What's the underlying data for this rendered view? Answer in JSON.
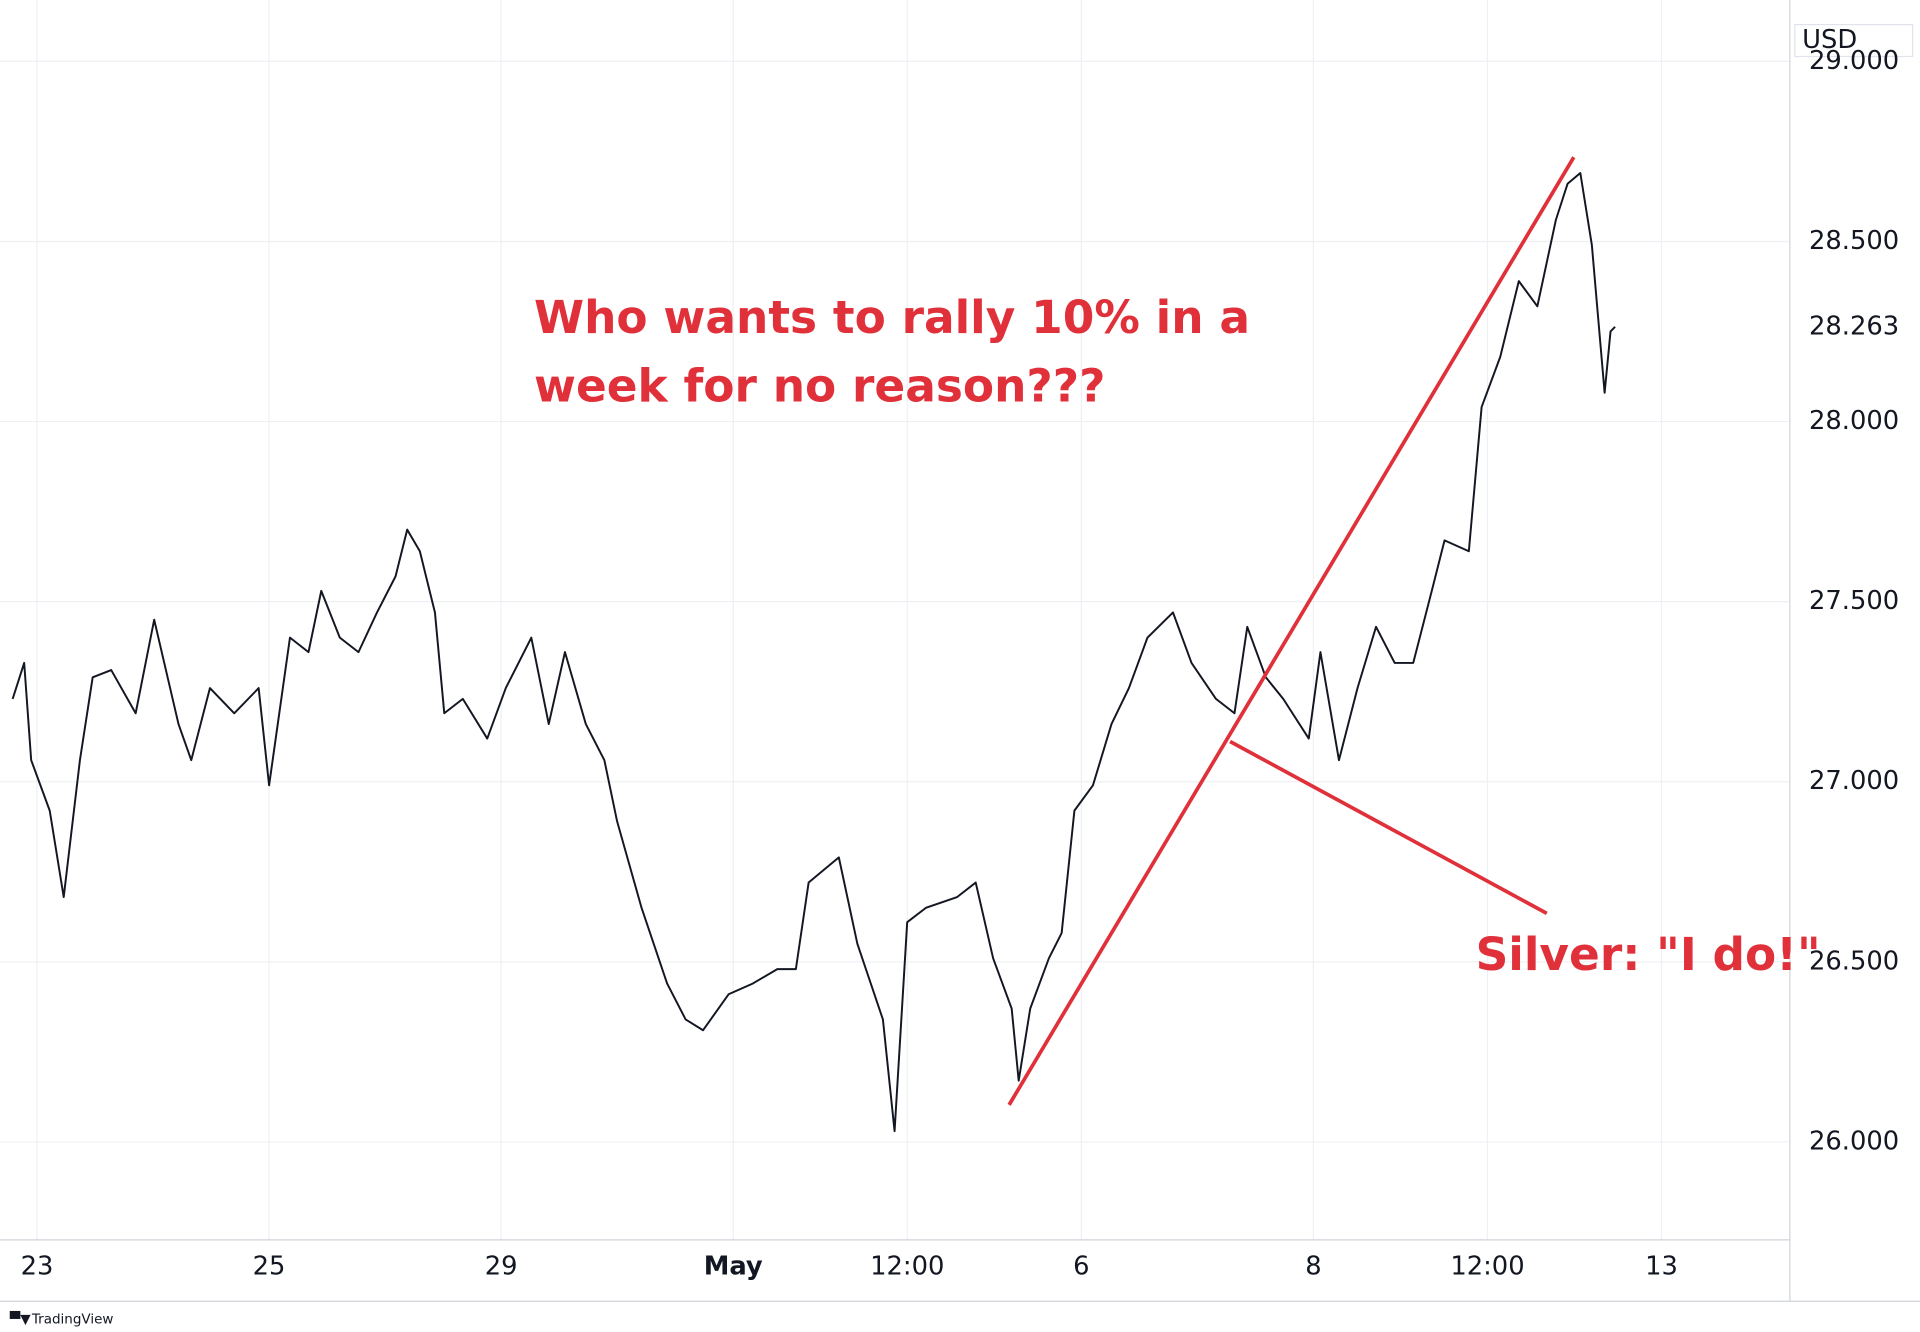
{
  "chart_data": {
    "type": "line",
    "currency": "USD",
    "brand": "TradingView",
    "annotations": [
      "Who wants to rally 10% in a",
      "week for no reason???",
      "Silver: \"I do!\""
    ],
    "color": "#131722",
    "annotation_color": "#e0303a",
    "grid": true,
    "last_value": 28.263,
    "x": [
      -0.21,
      -0.11,
      -0.05,
      0.11,
      0.23,
      0.37,
      0.48,
      0.64,
      0.85,
      1.01,
      1.22,
      1.33,
      1.49,
      1.7,
      1.91,
      2.0,
      2.18,
      2.34,
      2.45,
      2.61,
      2.77,
      2.93,
      3.09,
      3.19,
      3.3,
      3.43,
      3.51,
      3.67,
      3.88,
      4.04,
      4.26,
      4.41,
      4.55,
      4.73,
      4.89,
      5.0,
      5.21,
      5.43,
      5.59,
      5.74,
      5.96,
      6.17,
      6.38,
      6.54,
      6.65,
      6.91,
      7.07,
      7.29,
      7.39,
      7.5,
      7.66,
      7.93,
      8.09,
      8.24,
      8.4,
      8.46,
      8.56,
      8.72,
      8.83,
      8.94,
      9.1,
      9.26,
      9.41,
      9.57,
      9.79,
      9.95,
      10.16,
      10.32,
      10.43,
      10.59,
      10.74,
      10.96,
      11.06,
      11.22,
      11.38,
      11.54,
      11.7,
      11.86,
      12.02,
      12.13,
      12.34,
      12.45,
      12.61,
      12.77,
      12.93,
      13.09,
      13.19,
      13.3,
      13.4,
      13.51,
      13.56,
      13.6
    ],
    "values": [
      27.23,
      27.33,
      27.06,
      26.92,
      26.68,
      27.06,
      27.29,
      27.31,
      27.19,
      27.45,
      27.16,
      27.06,
      27.26,
      27.19,
      27.26,
      26.99,
      27.4,
      27.36,
      27.53,
      27.4,
      27.36,
      27.47,
      27.57,
      27.7,
      27.64,
      27.47,
      27.19,
      27.23,
      27.12,
      27.26,
      27.4,
      27.16,
      27.36,
      27.16,
      27.06,
      26.89,
      26.65,
      26.44,
      26.34,
      26.31,
      26.41,
      26.44,
      26.48,
      26.48,
      26.72,
      26.79,
      26.55,
      26.34,
      26.03,
      26.61,
      26.65,
      26.68,
      26.72,
      26.51,
      26.37,
      26.17,
      26.37,
      26.51,
      26.58,
      26.92,
      26.99,
      27.16,
      27.26,
      27.4,
      27.47,
      27.33,
      27.23,
      27.19,
      27.43,
      27.29,
      27.23,
      27.12,
      27.36,
      27.06,
      27.26,
      27.43,
      27.33,
      27.33,
      27.53,
      27.67,
      27.64,
      28.04,
      28.18,
      28.39,
      28.32,
      28.56,
      28.66,
      28.69,
      28.49,
      28.08,
      28.25,
      28.263
    ],
    "xlim": [
      -0.234,
      15.106
    ],
    "xticks": [
      {
        "value": 0,
        "label": "23"
      },
      {
        "value": 2,
        "label": "25"
      },
      {
        "value": 4,
        "label": "29"
      },
      {
        "value": 6,
        "label": "May"
      },
      {
        "value": 7.5,
        "label": "12:00"
      },
      {
        "value": 9,
        "label": "6"
      },
      {
        "value": 11,
        "label": "8"
      },
      {
        "value": 12.5,
        "label": "12:00"
      },
      {
        "value": 14,
        "label": "13"
      }
    ],
    "ylim": [
      25.728,
      29.109
    ],
    "yticks": [
      {
        "value": 26,
        "label": "26.000"
      },
      {
        "value": 26.5,
        "label": "26.500"
      },
      {
        "value": 27,
        "label": "27.000"
      },
      {
        "value": 27.5,
        "label": "27.500"
      },
      {
        "value": 28,
        "label": "28.000"
      },
      {
        "value": 28.5,
        "label": "28.500"
      },
      {
        "value": 29,
        "label": "29.000"
      }
    ]
  }
}
